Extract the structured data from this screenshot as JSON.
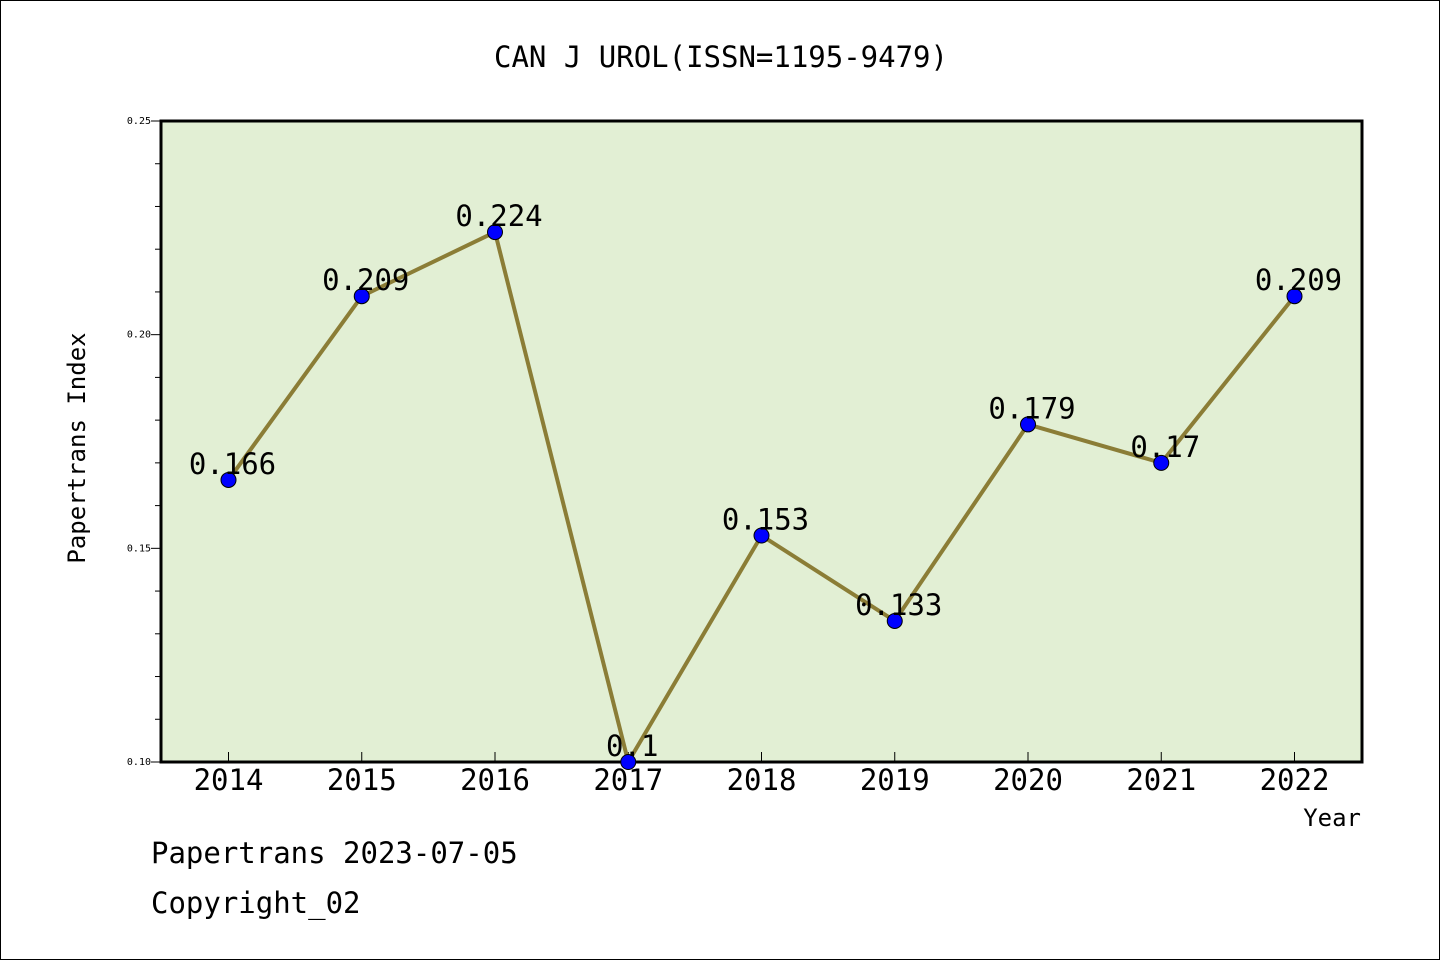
{
  "chart_data": {
    "type": "line",
    "title": "CAN J UROL(ISSN=1195-9479)",
    "xlabel": "Year",
    "ylabel": "Papertrans Index",
    "categories": [
      "2014",
      "2015",
      "2016",
      "2017",
      "2018",
      "2019",
      "2020",
      "2021",
      "2022"
    ],
    "values": [
      0.166,
      0.209,
      0.224,
      0.1,
      0.153,
      0.133,
      0.179,
      0.17,
      0.209
    ],
    "data_labels": [
      "0.166",
      "0.209",
      "0.224",
      "0.1",
      "0.153",
      "0.133",
      "0.179",
      "0.17",
      "0.209"
    ],
    "ylim": [
      0.1,
      0.25
    ],
    "yticks": [
      "0.10",
      "0.15",
      "0.20",
      "0.25"
    ],
    "line_color": "#8b7d36",
    "marker_color": "#0000ff",
    "plot_background": "#e2efd4",
    "grid": false
  },
  "footer": {
    "line1": "Papertrans 2023-07-05",
    "line2": "Copyright_02"
  }
}
